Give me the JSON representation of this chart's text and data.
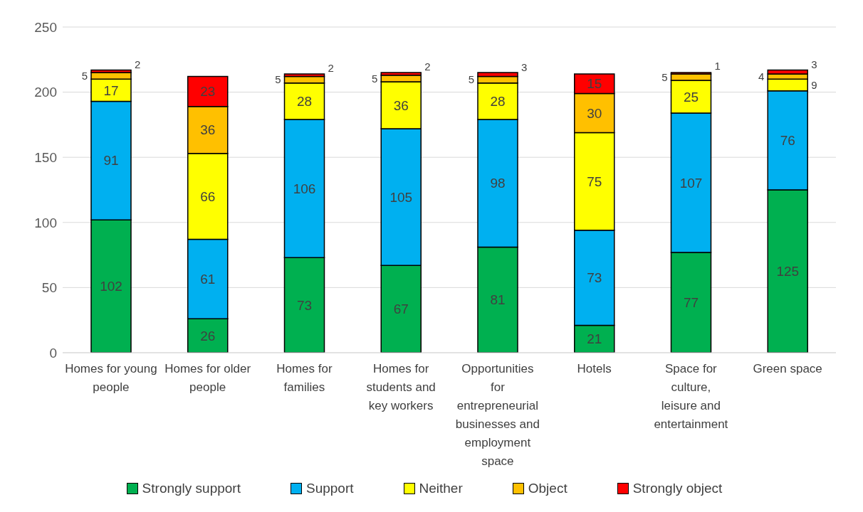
{
  "chart_data": {
    "type": "bar",
    "stacked": true,
    "data_labels": true,
    "grid": "y",
    "legend": "bottom",
    "categories": [
      "Homes for young people",
      "Homes for older people",
      "Homes for families",
      "Homes for students and key workers",
      "Opportunities for entrepreneurial businesses and employment space",
      "Hotels",
      "Space for culture, leisure and entertainment",
      "Green space"
    ],
    "ylim": [
      0,
      250
    ],
    "yticks": [
      0,
      50,
      100,
      150,
      200,
      250
    ],
    "series": [
      {
        "name": "Strongly support",
        "color": "#00b050",
        "values": [
          102,
          26,
          73,
          67,
          81,
          21,
          77,
          125
        ]
      },
      {
        "name": "Support",
        "color": "#00b0f0",
        "values": [
          91,
          61,
          106,
          105,
          98,
          73,
          107,
          76
        ]
      },
      {
        "name": "Neither",
        "color": "#ffff00",
        "values": [
          17,
          66,
          28,
          36,
          28,
          75,
          25,
          9
        ]
      },
      {
        "name": "Object",
        "color": "#ffc000",
        "values": [
          5,
          36,
          5,
          5,
          5,
          30,
          5,
          4
        ]
      },
      {
        "name": "Strongly object",
        "color": "#ff0000",
        "values": [
          2,
          23,
          2,
          2,
          3,
          15,
          1,
          3
        ]
      }
    ]
  }
}
